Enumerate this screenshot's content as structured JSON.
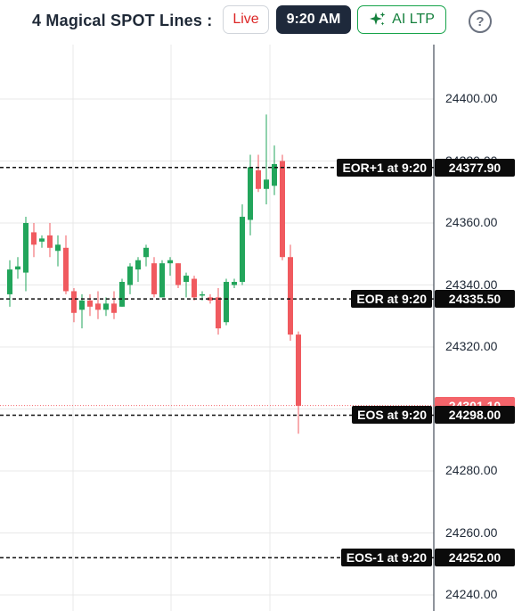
{
  "header": {
    "title": "4 Magical SPOT Lines :",
    "live_label": "Live",
    "time_label": "9:20 AM",
    "ai_label": "AI LTP",
    "help_label": "?"
  },
  "chart_data": {
    "type": "candlestick",
    "ylim": [
      24236,
      24414
    ],
    "y_ticks": [
      "24400.00",
      "24380.00",
      "24360.00",
      "24340.00",
      "24320.00",
      "24300.00",
      "24280.00",
      "24260.00",
      "24240.00"
    ],
    "candles": [
      {
        "open": 24337,
        "high": 24348,
        "low": 24333,
        "close": 24345
      },
      {
        "open": 24345,
        "high": 24349,
        "low": 24342,
        "close": 24346
      },
      {
        "open": 24344,
        "high": 24362,
        "low": 24338,
        "close": 24360
      },
      {
        "open": 24357,
        "high": 24360,
        "low": 24349,
        "close": 24353
      },
      {
        "open": 24354,
        "high": 24356,
        "low": 24352,
        "close": 24355
      },
      {
        "open": 24356,
        "high": 24360,
        "low": 24349,
        "close": 24352
      },
      {
        "open": 24351,
        "high": 24356,
        "low": 24346,
        "close": 24353
      },
      {
        "open": 24352,
        "high": 24356,
        "low": 24337,
        "close": 24338
      },
      {
        "open": 24338,
        "high": 24339,
        "low": 24328,
        "close": 24331
      },
      {
        "open": 24332,
        "high": 24337,
        "low": 24326,
        "close": 24335
      },
      {
        "open": 24335,
        "high": 24337,
        "low": 24330,
        "close": 24333
      },
      {
        "open": 24334,
        "high": 24338,
        "low": 24329,
        "close": 24332
      },
      {
        "open": 24332,
        "high": 24336,
        "low": 24330,
        "close": 24334
      },
      {
        "open": 24334,
        "high": 24338,
        "low": 24329,
        "close": 24331
      },
      {
        "open": 24333,
        "high": 24342,
        "low": 24333,
        "close": 24341
      },
      {
        "open": 24340,
        "high": 24347,
        "low": 24337,
        "close": 24346
      },
      {
        "open": 24345,
        "high": 24349,
        "low": 24341,
        "close": 24348
      },
      {
        "open": 24349,
        "high": 24353,
        "low": 24346,
        "close": 24352
      },
      {
        "open": 24347,
        "high": 24349,
        "low": 24336,
        "close": 24337
      },
      {
        "open": 24336,
        "high": 24348,
        "low": 24336,
        "close": 24347
      },
      {
        "open": 24347,
        "high": 24349,
        "low": 24343,
        "close": 24348
      },
      {
        "open": 24347,
        "high": 24347,
        "low": 24339,
        "close": 24340
      },
      {
        "open": 24341,
        "high": 24344,
        "low": 24336,
        "close": 24343
      },
      {
        "open": 24342,
        "high": 24343,
        "low": 24335,
        "close": 24336
      },
      {
        "open": 24337,
        "high": 24338,
        "low": 24335,
        "close": 24337
      },
      {
        "open": 24336,
        "high": 24337,
        "low": 24334,
        "close": 24335
      },
      {
        "open": 24336,
        "high": 24339,
        "low": 24324,
        "close": 24326
      },
      {
        "open": 24328,
        "high": 24342,
        "low": 24327,
        "close": 24341
      },
      {
        "open": 24340,
        "high": 24342,
        "low": 24339,
        "close": 24341
      },
      {
        "open": 24341,
        "high": 24366,
        "low": 24340,
        "close": 24362
      },
      {
        "open": 24361,
        "high": 24382,
        "low": 24356,
        "close": 24378
      },
      {
        "open": 24377,
        "high": 24382,
        "low": 24370,
        "close": 24371
      },
      {
        "open": 24371,
        "high": 24395,
        "low": 24366,
        "close": 24374
      },
      {
        "open": 24372,
        "high": 24385,
        "low": 24369,
        "close": 24379
      },
      {
        "open": 24380,
        "high": 24382,
        "low": 24348,
        "close": 24349
      },
      {
        "open": 24349,
        "high": 24353,
        "low": 24322,
        "close": 24324
      },
      {
        "open": 24324,
        "high": 24325,
        "low": 24292,
        "close": 24301
      }
    ],
    "levels": [
      {
        "name": "EOR+1 at 9:20",
        "price": "24377.90",
        "value": 24377.9
      },
      {
        "name": "EOR at 9:20",
        "price": "24335.50",
        "value": 24335.5
      },
      {
        "name": "EOS at 9:20",
        "price": "24298.00",
        "value": 24298.0
      },
      {
        "name": "EOS-1 at 9:20",
        "price": "24252.00",
        "value": 24252.0
      }
    ],
    "last_price": {
      "label": "24301.10",
      "value": 24301.1
    },
    "colors": {
      "up": "#22a55b",
      "down": "#f05a5f",
      "grid": "#e8e8e8",
      "axis": "#1f2937",
      "live": "#f4646a"
    }
  }
}
